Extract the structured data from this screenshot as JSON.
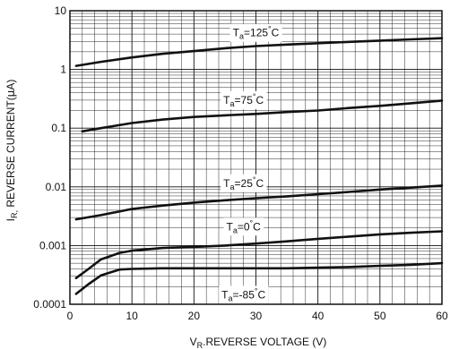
{
  "chart_data": {
    "type": "line",
    "title": "",
    "xlabel": {
      "sym": "V",
      "sub": "R",
      "text": ".REVERSE VOLTAGE (V)"
    },
    "ylabel": {
      "sym": "I",
      "sub": "R,",
      "text": " REVERSE CURRENT(",
      "mu": "μ",
      "unit": "A)"
    },
    "x_scale": "linear",
    "y_scale": "log",
    "xlim": [
      0,
      60
    ],
    "ylim": [
      0.0001,
      10
    ],
    "x_ticks": [
      {
        "v": 0,
        "label": "0"
      },
      {
        "v": 10,
        "label": "10"
      },
      {
        "v": 20,
        "label": "20"
      },
      {
        "v": 30,
        "label": "30"
      },
      {
        "v": 40,
        "label": "40"
      },
      {
        "v": 50,
        "label": "50"
      },
      {
        "v": 60,
        "label": "60"
      }
    ],
    "y_ticks": [
      {
        "v": 10,
        "label": "10"
      },
      {
        "v": 1,
        "label": "1"
      },
      {
        "v": 0.1,
        "label": "0.1"
      },
      {
        "v": 0.01,
        "label": "0.01"
      },
      {
        "v": 0.001,
        "label": "0.001"
      },
      {
        "v": 0.0001,
        "label": "0.0001"
      }
    ],
    "grid": true,
    "series": [
      {
        "name": "Ta=125°C",
        "label_parts": [
          "T",
          "a",
          "=125",
          "°",
          "C"
        ],
        "label_at": [
          30,
          4.2
        ],
        "x": [
          1,
          5,
          10,
          15,
          20,
          25,
          30,
          35,
          40,
          45,
          50,
          55,
          60
        ],
        "y": [
          1.15,
          1.35,
          1.6,
          1.85,
          2.05,
          2.3,
          2.5,
          2.65,
          2.8,
          2.95,
          3.1,
          3.25,
          3.4
        ]
      },
      {
        "name": "Ta=75°C",
        "label_parts": [
          "T",
          "a",
          "=75",
          "°",
          "C"
        ],
        "label_at": [
          28,
          0.3
        ],
        "x": [
          2,
          5,
          10,
          15,
          20,
          25,
          30,
          35,
          40,
          45,
          50,
          55,
          60
        ],
        "y": [
          0.088,
          0.1,
          0.122,
          0.14,
          0.155,
          0.165,
          0.175,
          0.188,
          0.2,
          0.22,
          0.24,
          0.265,
          0.295
        ]
      },
      {
        "name": "Ta=25°C",
        "label_parts": [
          "T",
          "a",
          "=25",
          "°",
          "C"
        ],
        "label_at": [
          28,
          0.0115
        ],
        "x": [
          1,
          5,
          10,
          15,
          20,
          25,
          30,
          35,
          40,
          45,
          50,
          55,
          60
        ],
        "y": [
          0.0028,
          0.0033,
          0.0042,
          0.0048,
          0.0054,
          0.0059,
          0.0064,
          0.0069,
          0.0075,
          0.0082,
          0.009,
          0.0097,
          0.0105
        ]
      },
      {
        "name": "Ta=0°C",
        "label_parts": [
          "T",
          "a",
          "=0",
          "°",
          "C"
        ],
        "label_at": [
          28,
          0.0021
        ],
        "x": [
          1,
          3,
          5,
          8,
          10,
          15,
          20,
          25,
          30,
          35,
          40,
          45,
          50,
          55,
          60
        ],
        "y": [
          0.00028,
          0.0004,
          0.00058,
          0.00075,
          0.00082,
          0.00091,
          0.00095,
          0.001,
          0.00108,
          0.00118,
          0.0013,
          0.00142,
          0.00155,
          0.00165,
          0.00175
        ]
      },
      {
        "name": "Ta=-85°C",
        "label_parts": [
          "T",
          "a",
          "=-85",
          "°",
          "C"
        ],
        "label_at": [
          28,
          0.000145
        ],
        "x": [
          1,
          3,
          5,
          8,
          10,
          15,
          20,
          25,
          30,
          35,
          40,
          45,
          50,
          55,
          60
        ],
        "y": [
          0.00015,
          0.00022,
          0.00031,
          0.00039,
          0.0004,
          0.00041,
          0.00041,
          0.00041,
          0.00041,
          0.00041,
          0.00042,
          0.00043,
          0.00045,
          0.00047,
          0.0005
        ]
      }
    ]
  }
}
